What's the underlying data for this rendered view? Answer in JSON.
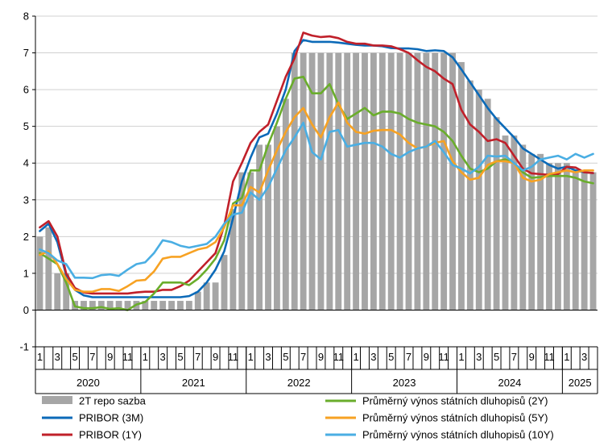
{
  "chart_data": {
    "type": "bar+line",
    "title": "",
    "xlabel": "",
    "ylabel": "",
    "ylim": [
      -1,
      8
    ],
    "yticks": [
      -1,
      0,
      1,
      2,
      3,
      4,
      5,
      6,
      7,
      8
    ],
    "grid": "horizontal",
    "legend_position": "bottom",
    "months": 64,
    "start": "2020-01",
    "month_tick_labels": [
      "1",
      "3",
      "5",
      "7",
      "9",
      "11",
      "1",
      "3",
      "5",
      "7",
      "9",
      "11",
      "1",
      "3",
      "5",
      "7",
      "9",
      "11",
      "1",
      "3",
      "5",
      "7",
      "9",
      "11",
      "1",
      "3",
      "5",
      "7",
      "9",
      "11",
      "1",
      "3"
    ],
    "years": [
      {
        "label": "2020",
        "months": 12
      },
      {
        "label": "2021",
        "months": 12
      },
      {
        "label": "2022",
        "months": 12
      },
      {
        "label": "2023",
        "months": 12
      },
      {
        "label": "2024",
        "months": 12
      },
      {
        "label": "2025",
        "months": 4
      }
    ],
    "bars": {
      "name": "2T repo sazba",
      "color": "#a6a6a6",
      "values": [
        2.0,
        2.25,
        1.0,
        1.0,
        0.25,
        0.25,
        0.25,
        0.25,
        0.25,
        0.25,
        0.25,
        0.25,
        0.25,
        0.25,
        0.25,
        0.25,
        0.25,
        0.25,
        0.5,
        0.75,
        0.75,
        1.5,
        2.75,
        3.75,
        3.75,
        4.5,
        4.5,
        5.0,
        5.75,
        7.0,
        7.0,
        7.0,
        7.0,
        7.0,
        7.0,
        7.0,
        7.0,
        7.0,
        7.0,
        7.0,
        7.0,
        7.0,
        7.0,
        7.0,
        7.0,
        7.0,
        7.0,
        7.0,
        6.75,
        6.25,
        6.0,
        5.75,
        5.25,
        4.75,
        4.75,
        4.5,
        4.25,
        4.25,
        4.0,
        4.0,
        4.0,
        3.75,
        3.75,
        3.75
      ]
    },
    "series": [
      {
        "name": "PRIBOR (3M)",
        "color": "#0b6ab8",
        "values": [
          2.15,
          2.35,
          1.85,
          0.95,
          0.55,
          0.4,
          0.35,
          0.35,
          0.35,
          0.35,
          0.35,
          0.35,
          0.35,
          0.35,
          0.35,
          0.35,
          0.35,
          0.38,
          0.5,
          0.75,
          1.1,
          1.6,
          2.5,
          3.5,
          4.15,
          4.7,
          4.8,
          5.35,
          6.0,
          7.05,
          7.35,
          7.3,
          7.3,
          7.3,
          7.28,
          7.25,
          7.22,
          7.2,
          7.2,
          7.18,
          7.13,
          7.12,
          7.12,
          7.1,
          7.05,
          7.07,
          7.05,
          6.88,
          6.55,
          6.2,
          5.85,
          5.5,
          5.2,
          4.95,
          4.7,
          4.4,
          4.25,
          4.1,
          3.95,
          3.85,
          3.9,
          3.8,
          3.75,
          3.73
        ]
      },
      {
        "name": "PRIBOR (1Y)",
        "color": "#c0202a",
        "values": [
          2.25,
          2.42,
          2.0,
          1.0,
          0.6,
          0.48,
          0.45,
          0.45,
          0.45,
          0.45,
          0.45,
          0.48,
          0.5,
          0.5,
          0.55,
          0.55,
          0.65,
          0.8,
          1.05,
          1.3,
          1.55,
          2.3,
          3.5,
          4.0,
          4.55,
          4.85,
          5.05,
          5.7,
          6.35,
          6.85,
          7.55,
          7.47,
          7.43,
          7.45,
          7.4,
          7.3,
          7.25,
          7.25,
          7.2,
          7.2,
          7.18,
          7.1,
          7.0,
          6.8,
          6.62,
          6.5,
          6.3,
          6.15,
          5.45,
          5.05,
          4.85,
          4.6,
          4.65,
          4.55,
          4.2,
          3.85,
          3.72,
          3.7,
          3.68,
          3.7,
          3.9,
          3.88,
          3.75,
          3.73
        ]
      },
      {
        "name": "Průměrný výnos státních dluhopisů (2Y)",
        "color": "#6aad2c",
        "values": [
          1.55,
          1.4,
          1.25,
          0.75,
          0.1,
          0.05,
          0.05,
          0.08,
          0.03,
          0.05,
          0.0,
          0.15,
          0.22,
          0.45,
          0.75,
          0.75,
          0.75,
          0.68,
          0.85,
          1.1,
          1.4,
          1.9,
          2.9,
          3.05,
          3.8,
          3.8,
          4.5,
          5.1,
          5.75,
          6.3,
          6.35,
          5.9,
          5.9,
          6.15,
          5.6,
          5.2,
          5.35,
          5.5,
          5.3,
          5.4,
          5.4,
          5.35,
          5.2,
          5.1,
          5.05,
          5.0,
          4.85,
          4.6,
          4.2,
          3.85,
          3.75,
          3.85,
          4.05,
          4.1,
          4.0,
          3.75,
          3.6,
          3.62,
          3.65,
          3.65,
          3.65,
          3.6,
          3.5,
          3.45
        ]
      },
      {
        "name": "Průměrný výnos státních dluhopisů (5Y)",
        "color": "#f7a223",
        "values": [
          1.5,
          1.6,
          1.25,
          0.85,
          0.55,
          0.5,
          0.5,
          0.57,
          0.57,
          0.52,
          0.65,
          0.8,
          0.82,
          1.05,
          1.4,
          1.45,
          1.45,
          1.55,
          1.65,
          1.7,
          1.85,
          2.25,
          2.85,
          2.85,
          3.35,
          3.2,
          3.8,
          4.35,
          4.85,
          5.25,
          5.5,
          5.05,
          4.7,
          5.25,
          5.65,
          5.1,
          4.85,
          4.8,
          4.88,
          4.9,
          4.9,
          4.78,
          4.55,
          4.4,
          4.45,
          4.55,
          4.6,
          4.05,
          3.75,
          3.55,
          3.6,
          3.95,
          4.05,
          4.05,
          4.0,
          3.6,
          3.5,
          3.55,
          3.7,
          3.75,
          3.8,
          3.75,
          3.8,
          3.8
        ]
      },
      {
        "name": "Průměrný výnos státních dluhopisů (10Y)",
        "color": "#4aaee3",
        "values": [
          1.65,
          1.55,
          1.35,
          1.25,
          0.88,
          0.88,
          0.87,
          0.95,
          0.97,
          0.93,
          1.1,
          1.25,
          1.3,
          1.55,
          1.9,
          1.85,
          1.75,
          1.7,
          1.75,
          1.8,
          2.0,
          2.35,
          2.6,
          2.65,
          3.2,
          3.0,
          3.35,
          3.85,
          4.35,
          4.7,
          5.1,
          4.3,
          4.1,
          4.85,
          4.9,
          4.45,
          4.5,
          4.55,
          4.55,
          4.45,
          4.25,
          4.15,
          4.3,
          4.4,
          4.45,
          4.6,
          4.3,
          3.95,
          3.85,
          3.72,
          3.9,
          4.2,
          4.18,
          4.2,
          4.0,
          3.8,
          3.9,
          4.1,
          4.15,
          4.2,
          4.1,
          4.25,
          4.15,
          4.25
        ]
      }
    ],
    "legend": [
      {
        "name": "2T repo sazba",
        "kind": "bar",
        "color": "#a6a6a6"
      },
      {
        "name": "PRIBOR (3M)",
        "kind": "line",
        "color": "#0b6ab8"
      },
      {
        "name": "PRIBOR (1Y)",
        "kind": "line",
        "color": "#c0202a"
      },
      {
        "name": "Průměrný výnos státních dluhopisů (2Y)",
        "kind": "line",
        "color": "#6aad2c"
      },
      {
        "name": "Průměrný výnos státních dluhopisů (5Y)",
        "kind": "line",
        "color": "#f7a223"
      },
      {
        "name": "Průměrný výnos státních dluhopisů (10Y)",
        "kind": "line",
        "color": "#4aaee3"
      }
    ]
  }
}
